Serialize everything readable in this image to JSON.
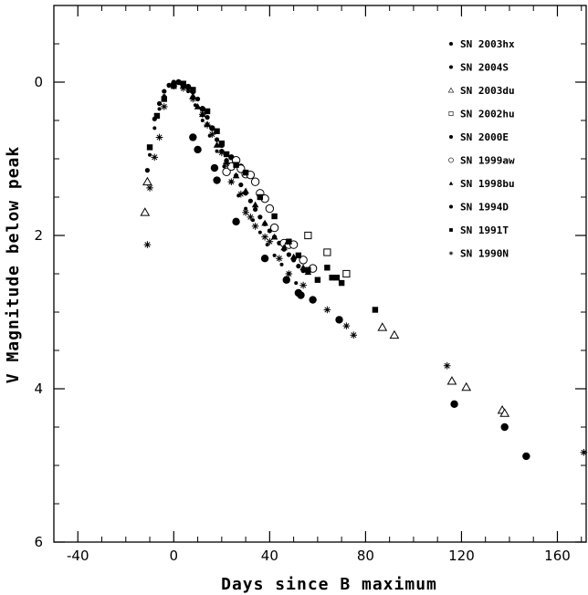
{
  "chart_data": {
    "type": "scatter",
    "xlabel": "Days since B maximum",
    "ylabel": "V Magnitude below peak",
    "xlim": [
      -50,
      172
    ],
    "ylim": [
      6,
      -1.0
    ],
    "y_inverted": true,
    "x_ticks": [
      -40,
      0,
      40,
      80,
      120,
      160
    ],
    "y_ticks": [
      0,
      2,
      4,
      6
    ],
    "x_tick_labels": [
      "-40",
      "0",
      "40",
      "80",
      "120",
      "160"
    ],
    "y_tick_labels": [
      "0",
      "2",
      "4",
      "6"
    ],
    "grid": false,
    "legend_position": "top-right",
    "series": [
      {
        "name": "SN 2003hx",
        "marker": "filled-circle-large",
        "points": [
          [
            8,
            0.72
          ],
          [
            10,
            0.88
          ],
          [
            17,
            1.12
          ],
          [
            18,
            1.28
          ],
          [
            26,
            1.82
          ],
          [
            38,
            2.3
          ],
          [
            47,
            2.58
          ],
          [
            52,
            2.75
          ],
          [
            53,
            2.78
          ],
          [
            58,
            2.84
          ],
          [
            69,
            3.1
          ],
          [
            117,
            4.2
          ],
          [
            138,
            4.5
          ],
          [
            147,
            4.88
          ]
        ]
      },
      {
        "name": "SN 2004S",
        "marker": "filled-circle-small",
        "points": [
          [
            -11,
            1.15
          ],
          [
            -10,
            0.85
          ],
          [
            -8,
            0.48
          ],
          [
            -6,
            0.28
          ],
          [
            -4,
            0.12
          ],
          [
            -2,
            0.04
          ],
          [
            0,
            0.0
          ],
          [
            2,
            0.0
          ],
          [
            4,
            0.03
          ],
          [
            6,
            0.08
          ],
          [
            8,
            0.12
          ],
          [
            10,
            0.22
          ],
          [
            12,
            0.34
          ],
          [
            14,
            0.46
          ],
          [
            16,
            0.6
          ],
          [
            18,
            0.75
          ],
          [
            20,
            0.9
          ],
          [
            22,
            1.02
          ],
          [
            24,
            1.12
          ],
          [
            26,
            1.22
          ],
          [
            28,
            1.34
          ],
          [
            30,
            1.45
          ],
          [
            32,
            1.55
          ],
          [
            34,
            1.66
          ],
          [
            36,
            1.76
          ],
          [
            38,
            1.85
          ],
          [
            40,
            1.94
          ],
          [
            42,
            2.02
          ],
          [
            44,
            2.1
          ],
          [
            46,
            2.18
          ],
          [
            48,
            2.25
          ],
          [
            50,
            2.32
          ],
          [
            52,
            2.4
          ],
          [
            54,
            2.46
          ]
        ]
      },
      {
        "name": "SN 2003du",
        "marker": "open-triangle",
        "points": [
          [
            -12,
            1.7
          ],
          [
            -11,
            1.3
          ],
          [
            87,
            3.2
          ],
          [
            92,
            3.3
          ],
          [
            116,
            3.9
          ],
          [
            122,
            3.98
          ],
          [
            137,
            4.28
          ],
          [
            138,
            4.32
          ]
        ]
      },
      {
        "name": "SN 2002hu",
        "marker": "open-square",
        "points": [
          [
            56,
            2.0
          ],
          [
            64,
            2.22
          ],
          [
            72,
            2.5
          ]
        ]
      },
      {
        "name": "SN 2000E",
        "marker": "filled-circle-medium",
        "points": [
          [
            0,
            0.02
          ],
          [
            2,
            0.0
          ],
          [
            4,
            0.02
          ],
          [
            6,
            0.06
          ],
          [
            8,
            0.12
          ],
          [
            12,
            0.35
          ],
          [
            16,
            0.6
          ],
          [
            20,
            0.82
          ],
          [
            24,
            0.98
          ],
          [
            28,
            1.1
          ],
          [
            32,
            1.22
          ]
        ]
      },
      {
        "name": "SN 1999aw",
        "marker": "open-circle",
        "points": [
          [
            22,
            1.17
          ],
          [
            24,
            1.1
          ],
          [
            26,
            1.02
          ],
          [
            28,
            1.13
          ],
          [
            30,
            1.2
          ],
          [
            32,
            1.21
          ],
          [
            34,
            1.3
          ],
          [
            36,
            1.45
          ],
          [
            38,
            1.52
          ],
          [
            40,
            1.65
          ],
          [
            42,
            1.9
          ],
          [
            46,
            2.1
          ],
          [
            48,
            2.12
          ],
          [
            50,
            2.12
          ],
          [
            54,
            2.32
          ],
          [
            58,
            2.43
          ]
        ]
      },
      {
        "name": "SN 1998bu",
        "marker": "filled-triangle",
        "points": [
          [
            0,
            0.02
          ],
          [
            4,
            0.05
          ],
          [
            8,
            0.18
          ],
          [
            10,
            0.32
          ],
          [
            12,
            0.42
          ],
          [
            14,
            0.55
          ],
          [
            18,
            0.82
          ],
          [
            22,
            1.04
          ],
          [
            26,
            1.22
          ],
          [
            30,
            1.42
          ],
          [
            34,
            1.6
          ],
          [
            38,
            1.84
          ],
          [
            42,
            2.02
          ],
          [
            46,
            2.16
          ],
          [
            50,
            2.28
          ],
          [
            54,
            2.42
          ],
          [
            56,
            2.48
          ]
        ]
      },
      {
        "name": "SN 1994D",
        "marker": "filled-circle-tiny",
        "points": [
          [
            -10,
            0.95
          ],
          [
            -8,
            0.6
          ],
          [
            -6,
            0.35
          ],
          [
            -4,
            0.18
          ],
          [
            -2,
            0.05
          ],
          [
            0,
            0.0
          ],
          [
            3,
            0.02
          ],
          [
            6,
            0.12
          ],
          [
            9,
            0.3
          ],
          [
            12,
            0.5
          ],
          [
            15,
            0.7
          ],
          [
            18,
            0.9
          ],
          [
            21,
            1.1
          ],
          [
            24,
            1.3
          ],
          [
            27,
            1.48
          ],
          [
            30,
            1.65
          ],
          [
            33,
            1.8
          ],
          [
            36,
            1.96
          ],
          [
            39,
            2.12
          ],
          [
            42,
            2.26
          ],
          [
            45,
            2.38
          ],
          [
            48,
            2.5
          ],
          [
            51,
            2.62
          ]
        ]
      },
      {
        "name": "SN 1991T",
        "marker": "filled-square",
        "points": [
          [
            -10,
            0.85
          ],
          [
            -7,
            0.44
          ],
          [
            -4,
            0.22
          ],
          [
            0,
            0.05
          ],
          [
            4,
            0.02
          ],
          [
            8,
            0.1
          ],
          [
            14,
            0.38
          ],
          [
            18,
            0.64
          ],
          [
            20,
            0.8
          ],
          [
            22,
            0.94
          ],
          [
            26,
            1.08
          ],
          [
            30,
            1.18
          ],
          [
            36,
            1.5
          ],
          [
            42,
            1.75
          ],
          [
            48,
            2.08
          ],
          [
            52,
            2.26
          ],
          [
            56,
            2.45
          ],
          [
            60,
            2.58
          ],
          [
            64,
            2.42
          ],
          [
            66,
            2.55
          ],
          [
            68,
            2.55
          ],
          [
            70,
            2.62
          ],
          [
            84,
            2.97
          ]
        ]
      },
      {
        "name": "SN 1990N",
        "marker": "star",
        "points": [
          [
            -11,
            2.12
          ],
          [
            -10,
            1.38
          ],
          [
            -8,
            0.98
          ],
          [
            -6,
            0.72
          ],
          [
            -4,
            0.32
          ],
          [
            0,
            0.05
          ],
          [
            4,
            0.08
          ],
          [
            8,
            0.22
          ],
          [
            12,
            0.42
          ],
          [
            14,
            0.56
          ],
          [
            16,
            0.68
          ],
          [
            20,
            0.92
          ],
          [
            22,
            1.06
          ],
          [
            24,
            1.3
          ],
          [
            28,
            1.46
          ],
          [
            30,
            1.7
          ],
          [
            32,
            1.76
          ],
          [
            34,
            1.88
          ],
          [
            38,
            2.02
          ],
          [
            40,
            2.08
          ],
          [
            44,
            2.3
          ],
          [
            48,
            2.5
          ],
          [
            54,
            2.65
          ],
          [
            64,
            2.97
          ],
          [
            72,
            3.18
          ],
          [
            75,
            3.3
          ],
          [
            114,
            3.7
          ],
          [
            171,
            4.83
          ]
        ]
      }
    ]
  }
}
